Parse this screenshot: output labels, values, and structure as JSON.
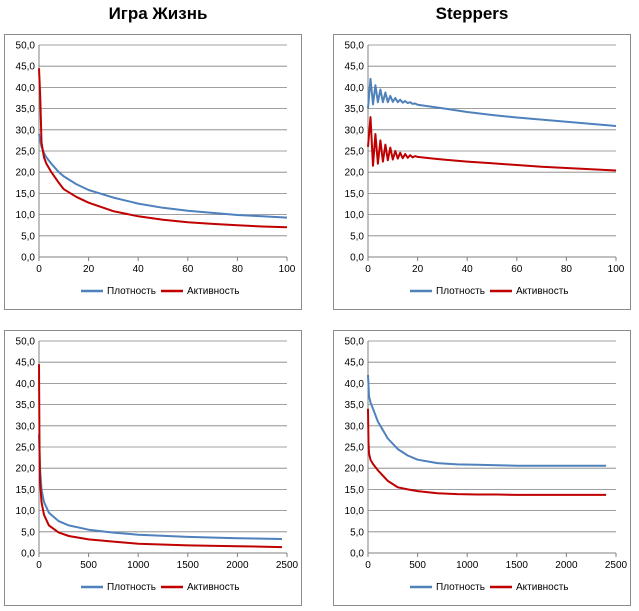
{
  "titles": {
    "left": "Игра Жизнь",
    "right": "Steppers"
  },
  "colors": {
    "density": "#4f81bd",
    "activity": "#c00000",
    "grid": "#808080",
    "axis": "#808080"
  },
  "chart_data": [
    {
      "type": "line",
      "id": "chart-life-100",
      "xlim": [
        0,
        100
      ],
      "xticks": [
        0,
        20,
        40,
        60,
        80,
        100
      ],
      "ylim": [
        0,
        50
      ],
      "yticks": [
        "0,0",
        "5,0",
        "10,0",
        "15,0",
        "20,0",
        "25,0",
        "30,0",
        "35,0",
        "40,0",
        "45,0",
        "50,0"
      ],
      "legend": [
        "Плотность",
        "Активность"
      ],
      "series": [
        {
          "name": "Плотность",
          "x": [
            0,
            1,
            2,
            3,
            5,
            8,
            10,
            15,
            20,
            30,
            40,
            50,
            60,
            70,
            80,
            90,
            100
          ],
          "values": [
            29,
            26,
            24.5,
            23.5,
            22,
            20,
            19,
            17.2,
            15.8,
            14,
            12.6,
            11.6,
            10.9,
            10.4,
            9.9,
            9.6,
            9.3
          ]
        },
        {
          "name": "Активность",
          "x": [
            0,
            0.5,
            1,
            2,
            3,
            5,
            8,
            10,
            15,
            20,
            30,
            40,
            50,
            60,
            70,
            80,
            90,
            100
          ],
          "values": [
            44.5,
            38,
            27,
            23.5,
            22,
            20,
            17.5,
            16,
            14.2,
            12.8,
            10.8,
            9.6,
            8.8,
            8.2,
            7.8,
            7.5,
            7.2,
            7.0
          ]
        }
      ]
    },
    {
      "type": "line",
      "id": "chart-steppers-100",
      "xlim": [
        0,
        100
      ],
      "xticks": [
        0,
        20,
        40,
        60,
        80,
        100
      ],
      "ylim": [
        0,
        50
      ],
      "yticks": [
        "0,0",
        "5,0",
        "10,0",
        "15,0",
        "20,0",
        "25,0",
        "30,0",
        "35,0",
        "40,0",
        "45,0",
        "50,0"
      ],
      "legend": [
        "Плотность",
        "Активность"
      ],
      "series": [
        {
          "name": "Плотность",
          "x": [
            0,
            1,
            2,
            3,
            4,
            5,
            6,
            7,
            8,
            9,
            10,
            11,
            12,
            13,
            14,
            15,
            16,
            17,
            18,
            19,
            20,
            25,
            30,
            40,
            50,
            60,
            70,
            80,
            90,
            100
          ],
          "values": [
            35,
            42,
            36,
            40.5,
            36.5,
            39.5,
            36.5,
            38.8,
            36.5,
            38,
            36.6,
            37.5,
            36.5,
            37.1,
            36.4,
            36.8,
            36.3,
            36.5,
            36.1,
            36.2,
            35.9,
            35.5,
            35.1,
            34.2,
            33.5,
            32.9,
            32.4,
            31.9,
            31.4,
            30.9
          ]
        },
        {
          "name": "Активность",
          "x": [
            0,
            1,
            2,
            3,
            4,
            5,
            6,
            7,
            8,
            9,
            10,
            11,
            12,
            13,
            14,
            15,
            16,
            17,
            18,
            19,
            20,
            25,
            30,
            40,
            50,
            60,
            70,
            80,
            90,
            100
          ],
          "values": [
            26,
            33,
            21.5,
            29,
            22,
            27.5,
            22.5,
            26.5,
            22.8,
            25.8,
            23,
            25,
            23.2,
            24.6,
            23.3,
            24.3,
            23.4,
            24,
            23.5,
            23.8,
            23.6,
            23.3,
            23,
            22.5,
            22.1,
            21.7,
            21.3,
            21,
            20.7,
            20.4
          ]
        }
      ]
    },
    {
      "type": "line",
      "id": "chart-life-2500",
      "xlim": [
        0,
        2500
      ],
      "xticks": [
        0,
        500,
        1000,
        1500,
        2000,
        2500
      ],
      "ylim": [
        0,
        50
      ],
      "yticks": [
        "0,0",
        "5,0",
        "10,0",
        "15,0",
        "20,0",
        "25,0",
        "30,0",
        "35,0",
        "40,0",
        "45,0",
        "50,0"
      ],
      "legend": [
        "Плотность",
        "Активность"
      ],
      "series": [
        {
          "name": "Плотность",
          "x": [
            0,
            10,
            25,
            50,
            100,
            200,
            300,
            500,
            750,
            1000,
            1500,
            2000,
            2450
          ],
          "values": [
            28,
            20,
            15,
            12,
            9.5,
            7.5,
            6.5,
            5.5,
            4.8,
            4.3,
            3.8,
            3.5,
            3.3
          ]
        },
        {
          "name": "Активность",
          "x": [
            0,
            5,
            10,
            25,
            50,
            100,
            200,
            300,
            500,
            750,
            1000,
            1500,
            2000,
            2450
          ],
          "values": [
            44.5,
            25,
            17,
            12,
            9,
            6.5,
            4.8,
            4,
            3.2,
            2.7,
            2.2,
            1.8,
            1.6,
            1.4
          ]
        }
      ]
    },
    {
      "type": "line",
      "id": "chart-steppers-2500",
      "xlim": [
        0,
        2500
      ],
      "xticks": [
        0,
        500,
        1000,
        1500,
        2000,
        2500
      ],
      "ylim": [
        0,
        50
      ],
      "yticks": [
        "0,0",
        "5,0",
        "10,0",
        "15,0",
        "20,0",
        "25,0",
        "30,0",
        "35,0",
        "40,0",
        "45,0",
        "50,0"
      ],
      "legend": [
        "Плотность",
        "Активность"
      ],
      "series": [
        {
          "name": "Плотность",
          "x": [
            0,
            10,
            25,
            50,
            100,
            200,
            300,
            400,
            500,
            700,
            900,
            1100,
            1300,
            1500,
            1700,
            1900,
            2100,
            2400
          ],
          "values": [
            42,
            37,
            35.5,
            34,
            31,
            27,
            24.5,
            23,
            22,
            21.2,
            20.9,
            20.8,
            20.7,
            20.6,
            20.6,
            20.6,
            20.6,
            20.6
          ]
        },
        {
          "name": "Активность",
          "x": [
            0,
            5,
            10,
            25,
            50,
            100,
            200,
            300,
            400,
            500,
            700,
            900,
            1100,
            1300,
            1500,
            1700,
            1900,
            2100,
            2400
          ],
          "values": [
            34,
            26,
            23.5,
            22,
            21,
            19.5,
            17,
            15.5,
            15,
            14.6,
            14.1,
            13.9,
            13.8,
            13.8,
            13.7,
            13.7,
            13.7,
            13.7,
            13.7
          ]
        }
      ]
    }
  ]
}
